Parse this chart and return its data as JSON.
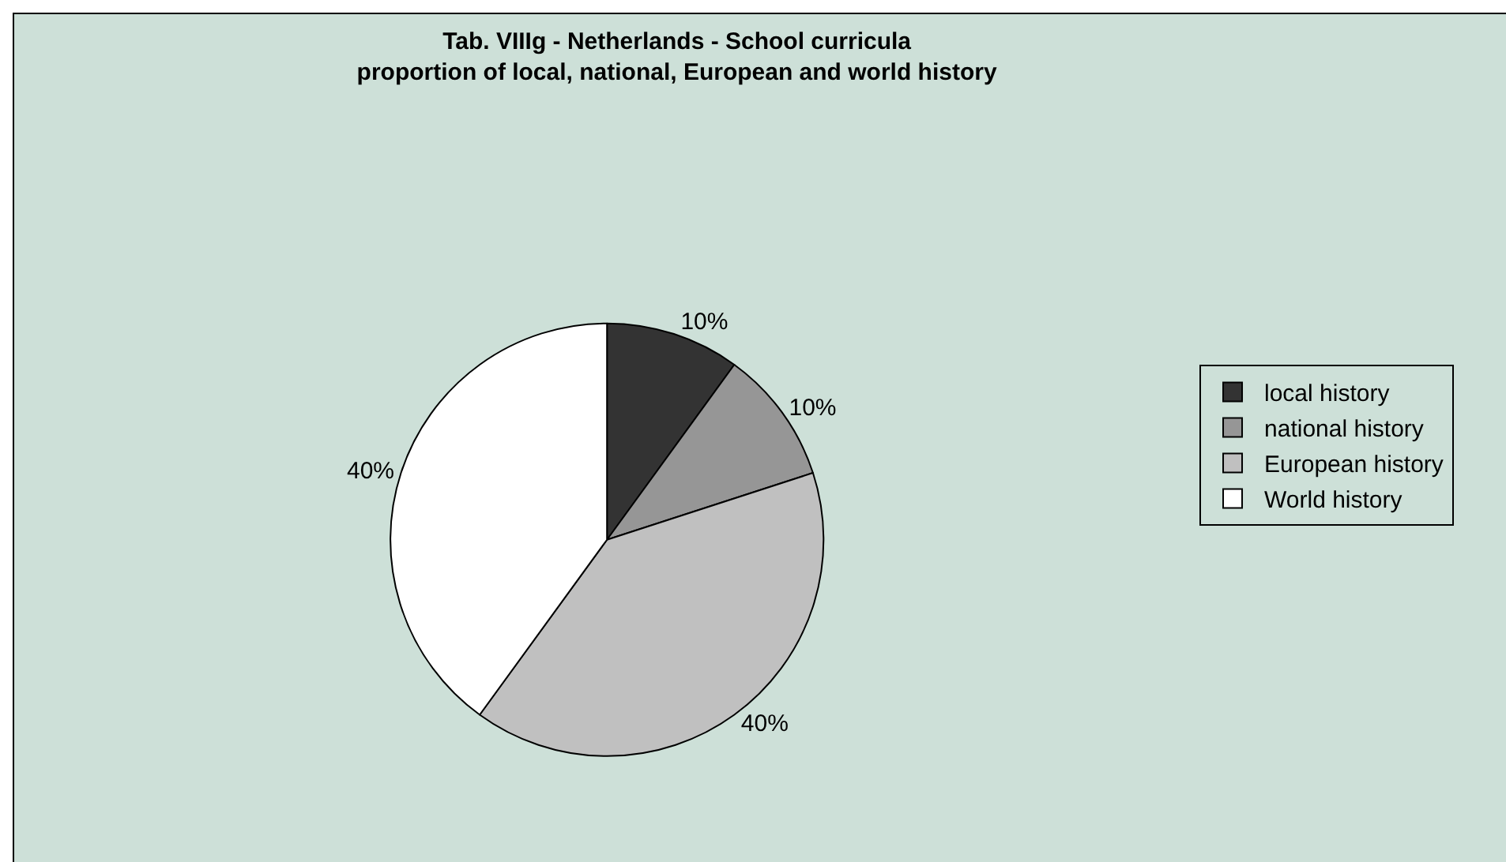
{
  "chart_data": {
    "type": "pie",
    "title": "Tab. VIIIg - Netherlands - School curricula\nproportion of local, national, European and world history",
    "categories": [
      "local history",
      "national history",
      "European history",
      "World history"
    ],
    "values": [
      10,
      10,
      40,
      40
    ],
    "value_labels": [
      "10%",
      "10%",
      "40%",
      "40%"
    ],
    "colors": [
      "#333333",
      "#969696",
      "#c0c0c0",
      "#ffffff"
    ],
    "legend": "right"
  }
}
